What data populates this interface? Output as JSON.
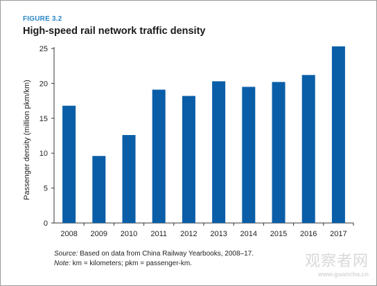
{
  "figure": {
    "label": "FIGURE 3.2",
    "title": "High-speed rail network traffic density"
  },
  "chart_data": {
    "type": "bar",
    "title": "High-speed rail network traffic density",
    "xlabel": "",
    "ylabel": "Passenger density (million pkm/km)",
    "categories": [
      "2008",
      "2009",
      "2010",
      "2011",
      "2012",
      "2013",
      "2014",
      "2015",
      "2016",
      "2017"
    ],
    "values": [
      16.8,
      9.6,
      12.6,
      19.1,
      18.2,
      20.3,
      19.5,
      20.2,
      21.2,
      25.3
    ],
    "ylim": [
      0,
      25
    ],
    "yticks": [
      "0",
      "5",
      "10",
      "15",
      "20",
      "25"
    ],
    "grid": false,
    "legend": "none",
    "bar_color": "#0a5ea8"
  },
  "notes": {
    "source_label": "Source:",
    "source_text": " Based on data from China Railway Yearbooks, 2008–17.",
    "note_label": "Note:",
    "note_text": " km = kilometers; pkm = passenger-km."
  },
  "watermark": {
    "line1": "观察者网",
    "line2": "www.guancha.cn"
  }
}
